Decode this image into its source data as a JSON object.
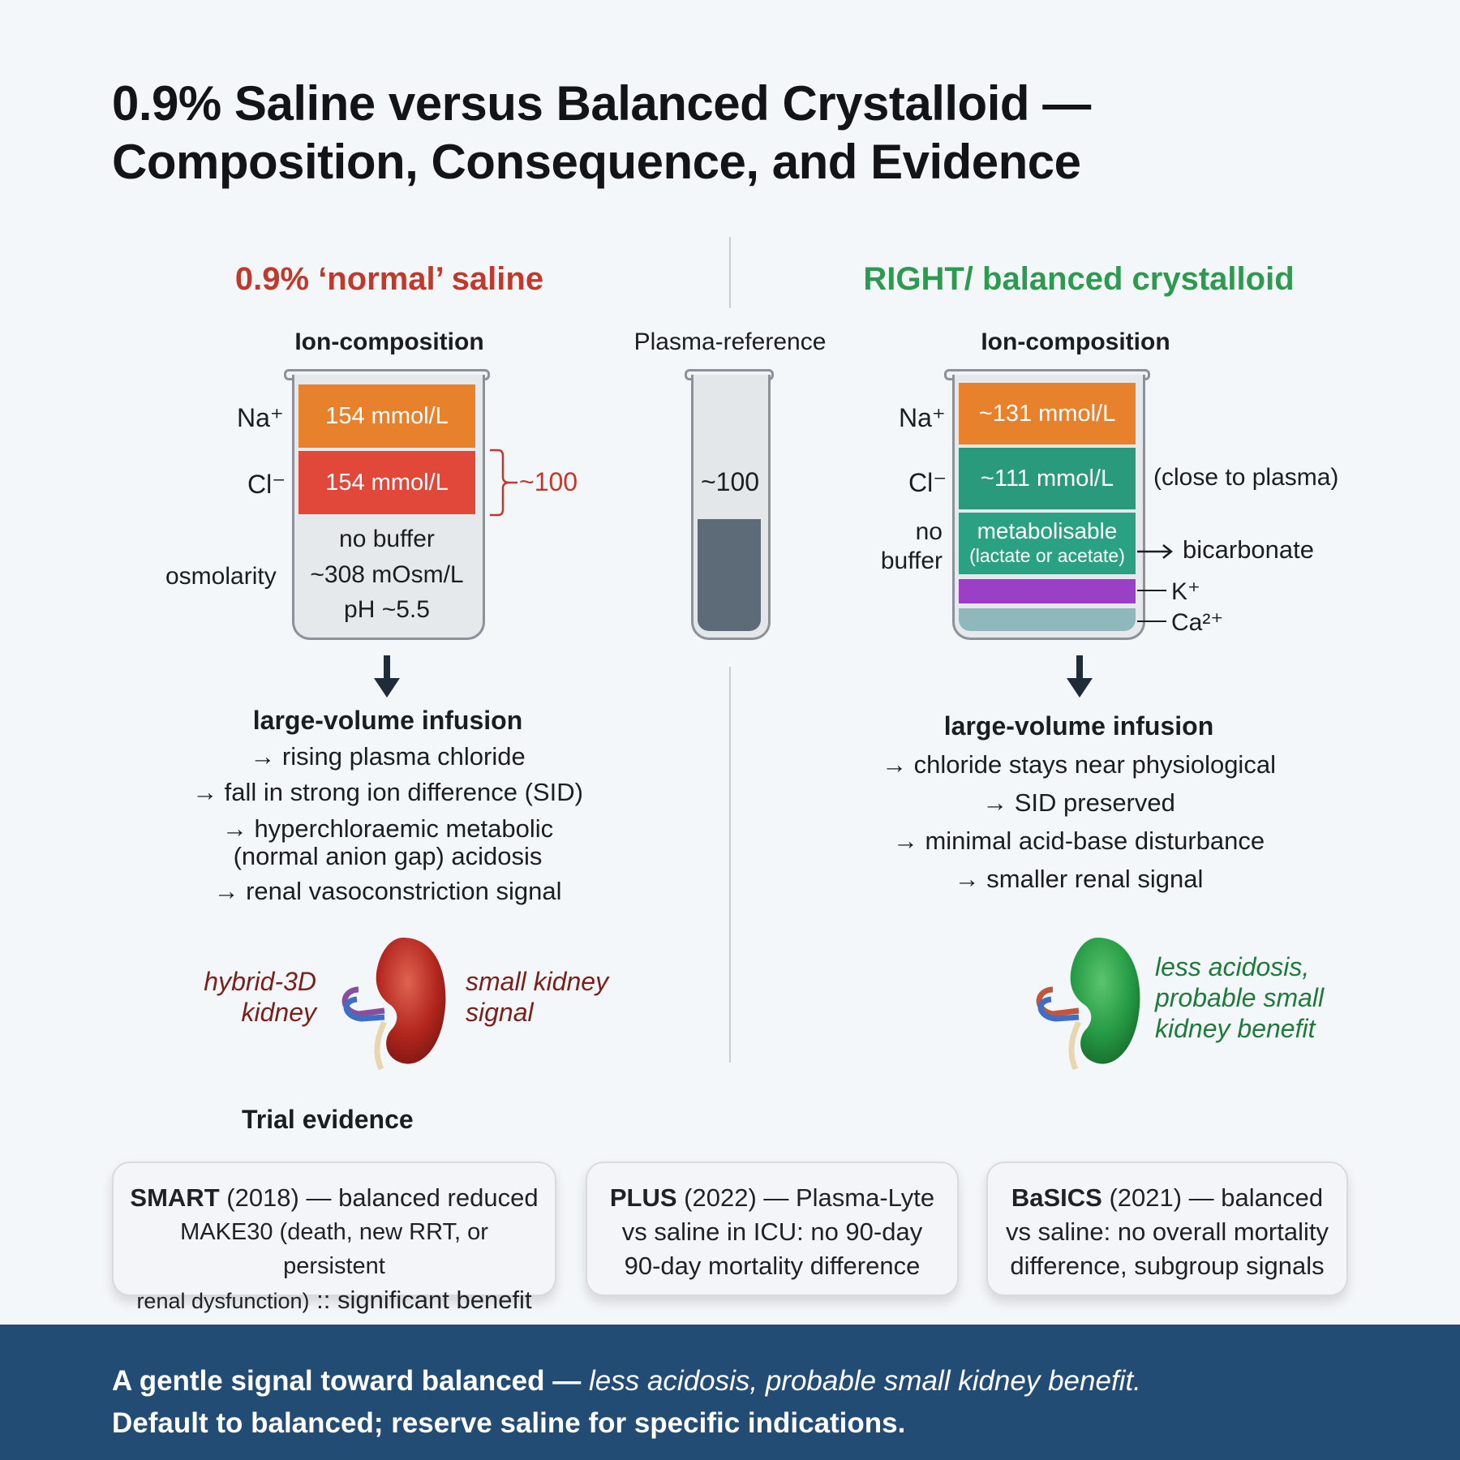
{
  "title": {
    "line1": "0.9% Saline versus Balanced Crystalloid —",
    "line2": "Composition, Consequence, and Evidence"
  },
  "colors": {
    "saline_title": "#c0392b",
    "balanced_title": "#2e9a4f",
    "na_band": "#e8812c",
    "cl_band_saline": "#e2483a",
    "cl_band_balanced": "#2a9a7d",
    "metabolisable_band": "#2ba183",
    "k_band": "#9b3fc6",
    "ca_band": "#8fb8bc",
    "footer": "#234c74"
  },
  "left": {
    "title": "0.9% ‘normal’ saline",
    "subtitle": "Ion-composition",
    "na_label": "Na⁺",
    "na_value": "154 mmol/L",
    "cl_label": "Cl⁻",
    "cl_value": "154 mmol/L",
    "bracket_label": "~100",
    "no_buffer": "no buffer",
    "osmolarity_label": "osmolarity",
    "osmolarity_value": "~308 mOsm/L",
    "ph": "pH ~5.5",
    "infusion_title": "large-volume infusion",
    "effects": [
      "→ rising plasma chloride",
      "→ fall in strong ion difference (SID)",
      "→ hyperchloraemic metabolic",
      "(normal anion gap) acidosis",
      "→ renal vasoconstriction signal"
    ],
    "kidney_label_1": "hybrid-3D",
    "kidney_label_2": "kidney",
    "kidney_note_1": "small kidney",
    "kidney_note_2": "signal",
    "kidney_icon": "kidney-icon"
  },
  "middle": {
    "subtitle": "Plasma-reference",
    "value": "~100"
  },
  "right": {
    "title": "RIGHT/ balanced crystalloid",
    "subtitle": "Ion-composition",
    "na_label": "Na⁺",
    "na_value": "~131 mmol/L",
    "cl_label": "Cl⁻",
    "cl_value": "~111 mmol/L",
    "cl_note": "(close to plasma)",
    "no_buffer_1": "no",
    "no_buffer_2": "buffer",
    "metab_1": "metabolisable",
    "metab_2": "(lactate or acetate)",
    "bicarbonate": "bicarbonate",
    "k_label": "K⁺",
    "ca_label": "Ca²⁺",
    "infusion_title": "large-volume infusion",
    "effects": [
      "→ chloride stays near physiological",
      "→ SID preserved",
      "→ minimal acid-base disturbance",
      "→ smaller renal signal"
    ],
    "kidney_note_1": "less acidosis,",
    "kidney_note_2": "probable small",
    "kidney_note_3": "kidney benefit",
    "kidney_icon": "kidney-icon"
  },
  "evidence": {
    "heading": "Trial evidence",
    "cards": [
      {
        "name": "SMART",
        "rest1": " (2018) — balanced reduced",
        "line2": "MAKE30 (death, new RRT, or persistent",
        "line3a": "renal dysfunction)",
        "line3b": " :: significant benefit"
      },
      {
        "name": "PLUS",
        "rest1": " (2022) — Plasma-Lyte",
        "line2": "vs saline in ICU: no 90-day",
        "line3": "90-day mortality difference"
      },
      {
        "name": "BaSICS",
        "rest1": " (2021) — balanced",
        "line2": "vs saline: no overall mortality",
        "line3": "difference, subgroup signals"
      }
    ]
  },
  "footer": {
    "line1_bold": "A gentle signal toward balanced — ",
    "line1_italic": "less acidosis, probable small kidney benefit.",
    "line2": "Default to balanced; reserve saline for specific indications."
  }
}
